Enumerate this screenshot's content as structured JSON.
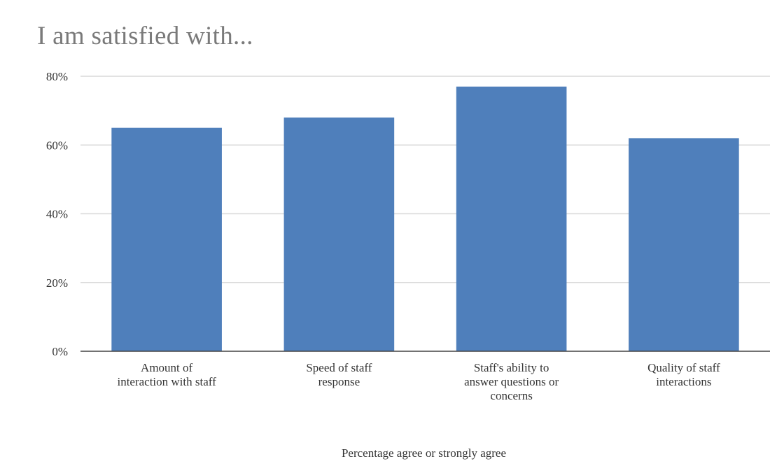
{
  "colors": {
    "bar": "#4f7fbb",
    "grid": "#d9d9d9",
    "axis": "#444444",
    "title": "#7a7a7a"
  },
  "chart_data": {
    "type": "bar",
    "title": "I am satisfied with...",
    "xlabel": "Percentage agree or strongly agree",
    "ylabel": "",
    "categories": [
      "Amount of interaction with staff",
      "Speed of staff response",
      "Staff's ability to answer questions or concerns",
      "Quality of staff interactions"
    ],
    "category_lines": [
      [
        "Amount of",
        "interaction with staff"
      ],
      [
        "Speed of staff",
        "response"
      ],
      [
        "Staff's ability to",
        "answer questions or",
        "concerns"
      ],
      [
        "Quality of staff",
        "interactions"
      ]
    ],
    "values": [
      65,
      68,
      77,
      62
    ],
    "ylim": [
      0,
      80
    ],
    "yticks": [
      0,
      20,
      40,
      60,
      80
    ],
    "ytick_labels": [
      "0%",
      "20%",
      "40%",
      "60%",
      "80%"
    ],
    "grid": true,
    "legend": "none"
  }
}
